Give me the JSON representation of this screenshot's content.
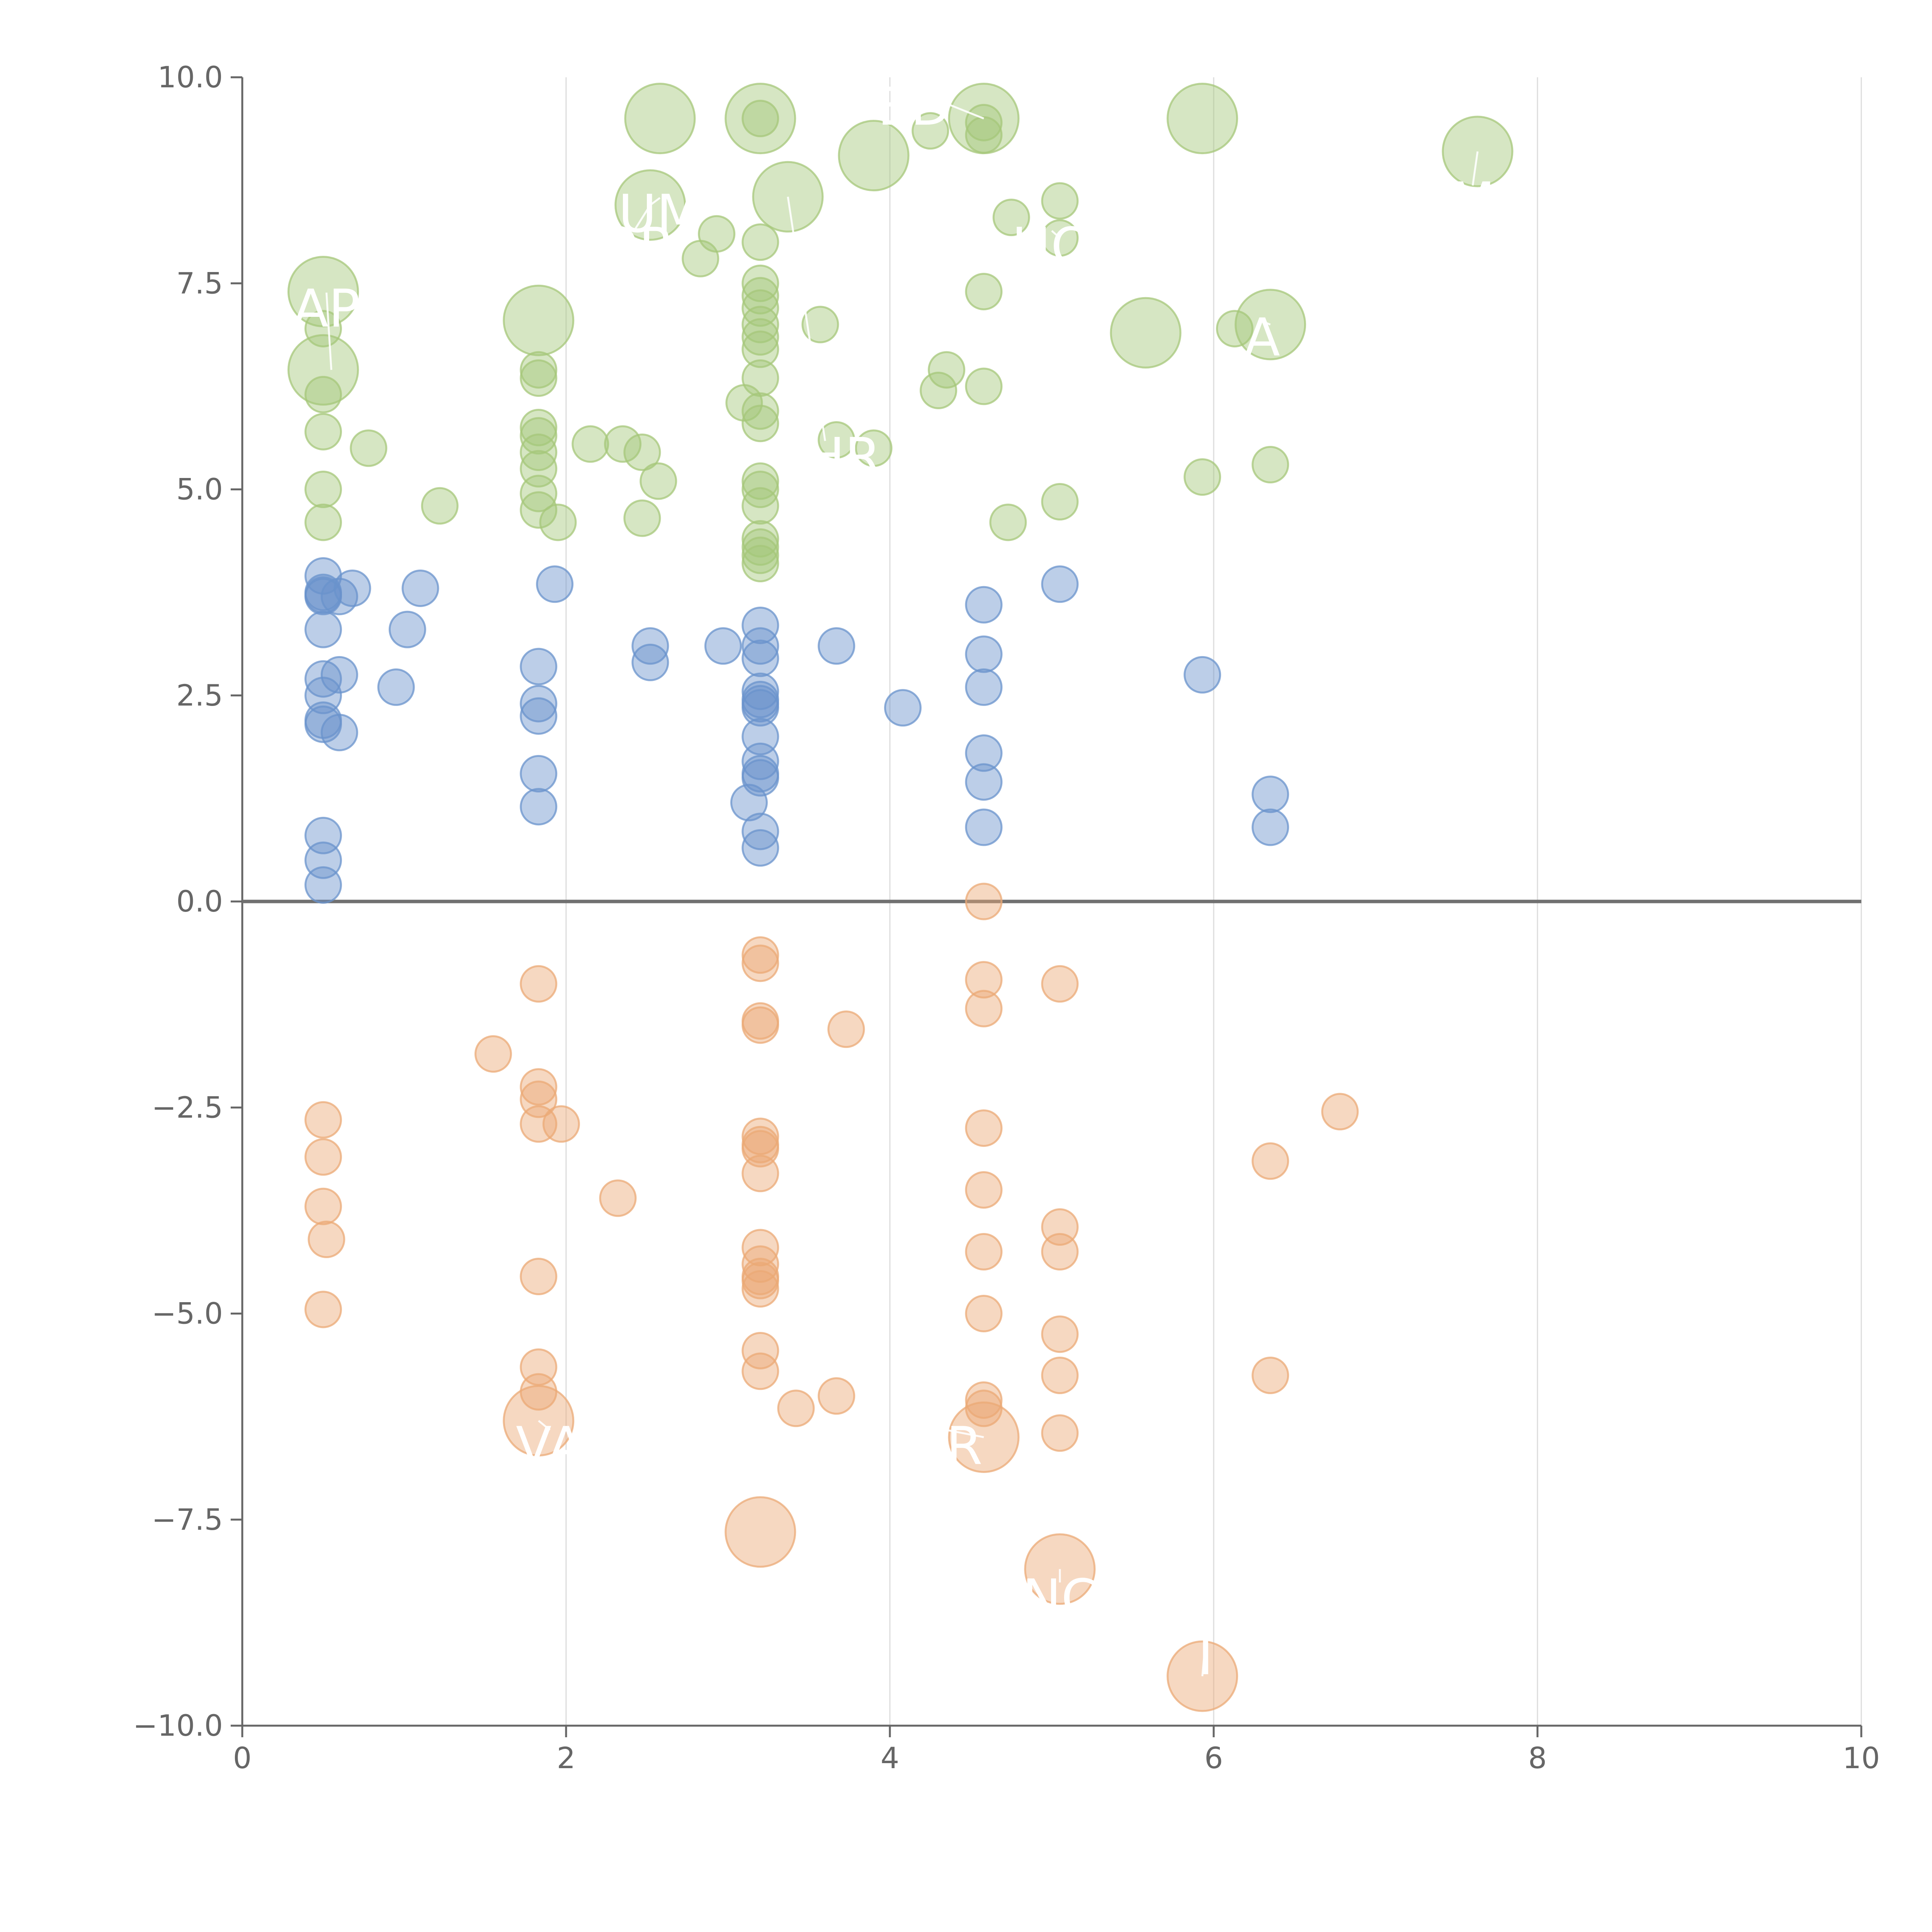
{
  "chart_data": {
    "type": "scatter",
    "xlim": [
      0,
      10
    ],
    "ylim": [
      -10,
      10
    ],
    "x_ticks": [
      "0",
      "2",
      "4",
      "6",
      "8",
      "10"
    ],
    "y_ticks": [
      "−10.0",
      "−7.5",
      "−5.0",
      "−2.5",
      "0.0",
      "2.5",
      "5.0",
      "7.5",
      "10.0"
    ],
    "grid": "vertical",
    "zero_line": true,
    "legend": "none",
    "colors": {
      "high": "#a5c77a",
      "mid": "#6a93cc",
      "low": "#eba976",
      "axis": "#666666",
      "grid": "#dcdcdc",
      "zero_line": "#707070"
    },
    "series": [
      {
        "color_key": "high",
        "points": [
          [
            0.5,
            7.4,
            3
          ],
          [
            0.5,
            6.95,
            1
          ],
          [
            0.5,
            6.45,
            3
          ],
          [
            0.5,
            6.15,
            1
          ],
          [
            0.5,
            5.7,
            1
          ],
          [
            0.5,
            5.0,
            1
          ],
          [
            0.5,
            4.6,
            1
          ],
          [
            0.78,
            5.5,
            1
          ],
          [
            1.22,
            4.8,
            1
          ],
          [
            1.83,
            7.05,
            3
          ],
          [
            1.83,
            6.45,
            1
          ],
          [
            1.83,
            6.35,
            1
          ],
          [
            1.83,
            5.75,
            1
          ],
          [
            1.83,
            5.65,
            1
          ],
          [
            1.83,
            5.45,
            1
          ],
          [
            1.83,
            5.25,
            1
          ],
          [
            1.83,
            4.95,
            1
          ],
          [
            1.83,
            4.75,
            1
          ],
          [
            1.95,
            4.6,
            1
          ],
          [
            2.15,
            5.55,
            1
          ],
          [
            2.35,
            5.55,
            1
          ],
          [
            2.47,
            5.45,
            1
          ],
          [
            2.57,
            5.1,
            1
          ],
          [
            2.47,
            4.65,
            1
          ],
          [
            2.52,
            8.45,
            3
          ],
          [
            2.58,
            9.5,
            3
          ],
          [
            2.83,
            7.8,
            1
          ],
          [
            2.93,
            8.1,
            1
          ],
          [
            3.2,
            9.5,
            3
          ],
          [
            3.2,
            9.5,
            1
          ],
          [
            3.2,
            8.0,
            1
          ],
          [
            3.2,
            7.5,
            1
          ],
          [
            3.2,
            7.35,
            1
          ],
          [
            3.2,
            7.2,
            1
          ],
          [
            3.2,
            7.0,
            1
          ],
          [
            3.2,
            6.85,
            1
          ],
          [
            3.2,
            6.7,
            1
          ],
          [
            3.2,
            6.35,
            1
          ],
          [
            3.1,
            6.05,
            1
          ],
          [
            3.2,
            5.95,
            1
          ],
          [
            3.2,
            5.8,
            1
          ],
          [
            3.2,
            5.1,
            1
          ],
          [
            3.2,
            5.0,
            1
          ],
          [
            3.2,
            4.8,
            1
          ],
          [
            3.2,
            4.4,
            1
          ],
          [
            3.2,
            4.3,
            1
          ],
          [
            3.2,
            4.2,
            1
          ],
          [
            3.2,
            4.1,
            1
          ],
          [
            3.37,
            8.55,
            3
          ],
          [
            3.57,
            7.0,
            1
          ],
          [
            3.67,
            5.6,
            1
          ],
          [
            3.9,
            5.5,
            1
          ],
          [
            3.9,
            9.05,
            3
          ],
          [
            4.25,
            9.35,
            1
          ],
          [
            4.3,
            6.2,
            1
          ],
          [
            4.35,
            6.45,
            1
          ],
          [
            4.58,
            9.5,
            3
          ],
          [
            4.58,
            9.45,
            1
          ],
          [
            4.58,
            9.3,
            1
          ],
          [
            4.58,
            7.4,
            1
          ],
          [
            4.58,
            6.25,
            1
          ],
          [
            4.75,
            8.3,
            1
          ],
          [
            4.73,
            4.6,
            1
          ],
          [
            5.05,
            8.5,
            1
          ],
          [
            5.05,
            8.05,
            1
          ],
          [
            5.05,
            4.85,
            1
          ],
          [
            5.58,
            6.9,
            3
          ],
          [
            5.93,
            9.5,
            3
          ],
          [
            5.93,
            5.15,
            1
          ],
          [
            6.13,
            6.95,
            1
          ],
          [
            6.35,
            7.0,
            3
          ],
          [
            6.35,
            5.3,
            1
          ],
          [
            7.63,
            9.1,
            3
          ]
        ]
      },
      {
        "color_key": "mid",
        "points": [
          [
            0.5,
            3.95,
            1
          ],
          [
            0.5,
            3.75,
            1
          ],
          [
            0.5,
            3.72,
            1
          ],
          [
            0.5,
            3.7,
            1
          ],
          [
            0.5,
            3.3,
            1
          ],
          [
            0.5,
            2.7,
            1
          ],
          [
            0.5,
            2.5,
            1
          ],
          [
            0.5,
            2.2,
            1
          ],
          [
            0.5,
            2.15,
            1
          ],
          [
            0.5,
            0.8,
            1
          ],
          [
            0.5,
            0.5,
            1
          ],
          [
            0.5,
            0.2,
            1
          ],
          [
            0.6,
            3.7,
            1
          ],
          [
            0.68,
            3.8,
            1
          ],
          [
            0.6,
            2.75,
            1
          ],
          [
            0.6,
            2.05,
            1
          ],
          [
            0.95,
            2.6,
            1
          ],
          [
            1.02,
            3.3,
            1
          ],
          [
            1.1,
            3.8,
            1
          ],
          [
            1.83,
            2.85,
            1
          ],
          [
            1.83,
            2.4,
            1
          ],
          [
            1.83,
            2.25,
            1
          ],
          [
            1.83,
            1.55,
            1
          ],
          [
            1.83,
            1.15,
            1
          ],
          [
            1.93,
            3.85,
            1
          ],
          [
            2.52,
            3.1,
            1
          ],
          [
            2.52,
            2.9,
            1
          ],
          [
            2.97,
            3.1,
            1
          ],
          [
            3.2,
            3.35,
            1
          ],
          [
            3.2,
            3.1,
            1
          ],
          [
            3.2,
            2.95,
            1
          ],
          [
            3.2,
            2.55,
            1
          ],
          [
            3.2,
            2.45,
            1
          ],
          [
            3.2,
            2.4,
            1
          ],
          [
            3.2,
            2.35,
            1
          ],
          [
            3.2,
            2.0,
            1
          ],
          [
            3.2,
            1.7,
            1
          ],
          [
            3.2,
            1.55,
            1
          ],
          [
            3.2,
            1.5,
            1
          ],
          [
            3.13,
            1.2,
            1
          ],
          [
            3.2,
            0.85,
            1
          ],
          [
            3.2,
            0.65,
            1
          ],
          [
            3.67,
            3.1,
            1
          ],
          [
            4.08,
            2.35,
            1
          ],
          [
            4.58,
            3.6,
            1
          ],
          [
            4.58,
            3.0,
            1
          ],
          [
            4.58,
            2.6,
            1
          ],
          [
            4.58,
            1.8,
            1
          ],
          [
            4.58,
            1.45,
            1
          ],
          [
            4.58,
            0.9,
            1
          ],
          [
            5.05,
            3.85,
            1
          ],
          [
            5.93,
            2.75,
            1
          ],
          [
            6.35,
            1.3,
            1
          ],
          [
            6.35,
            0.9,
            1
          ]
        ]
      },
      {
        "color_key": "low",
        "points": [
          [
            0.5,
            -2.65,
            1
          ],
          [
            0.5,
            -3.1,
            1
          ],
          [
            0.5,
            -3.7,
            1
          ],
          [
            0.52,
            -4.1,
            1
          ],
          [
            0.5,
            -4.95,
            1
          ],
          [
            1.55,
            -1.85,
            1
          ],
          [
            1.83,
            -1.0,
            1
          ],
          [
            1.83,
            -2.25,
            1
          ],
          [
            1.83,
            -2.4,
            1
          ],
          [
            1.83,
            -2.7,
            1
          ],
          [
            1.97,
            -2.7,
            1
          ],
          [
            1.83,
            -4.55,
            1
          ],
          [
            1.83,
            -5.65,
            1
          ],
          [
            1.83,
            -5.95,
            1
          ],
          [
            1.83,
            -6.3,
            3
          ],
          [
            2.32,
            -3.6,
            1
          ],
          [
            3.2,
            -0.65,
            1
          ],
          [
            3.2,
            -0.75,
            1
          ],
          [
            3.2,
            -1.45,
            1
          ],
          [
            3.2,
            -1.5,
            1
          ],
          [
            3.2,
            -2.85,
            1
          ],
          [
            3.2,
            -2.95,
            1
          ],
          [
            3.2,
            -3.0,
            1
          ],
          [
            3.2,
            -3.3,
            1
          ],
          [
            3.2,
            -4.2,
            1
          ],
          [
            3.2,
            -4.4,
            1
          ],
          [
            3.2,
            -4.55,
            1
          ],
          [
            3.2,
            -4.6,
            1
          ],
          [
            3.2,
            -4.7,
            1
          ],
          [
            3.2,
            -5.45,
            1
          ],
          [
            3.2,
            -5.7,
            1
          ],
          [
            3.2,
            -7.65,
            3
          ],
          [
            3.42,
            -6.15,
            1
          ],
          [
            3.67,
            -6.0,
            1
          ],
          [
            3.73,
            -1.55,
            1
          ],
          [
            4.58,
            0.0,
            1
          ],
          [
            4.58,
            -0.95,
            1
          ],
          [
            4.58,
            -1.3,
            1
          ],
          [
            4.58,
            -2.75,
            1
          ],
          [
            4.58,
            -3.5,
            1
          ],
          [
            4.58,
            -4.25,
            1
          ],
          [
            4.58,
            -5.0,
            1
          ],
          [
            4.58,
            -6.05,
            1
          ],
          [
            4.58,
            -6.15,
            1
          ],
          [
            4.58,
            -6.5,
            3
          ],
          [
            5.05,
            -1.0,
            1
          ],
          [
            5.05,
            -3.95,
            1
          ],
          [
            5.05,
            -4.25,
            1
          ],
          [
            5.05,
            -5.25,
            1
          ],
          [
            5.05,
            -5.75,
            1
          ],
          [
            5.05,
            -6.45,
            1
          ],
          [
            5.05,
            -8.1,
            3
          ],
          [
            5.93,
            -9.4,
            3
          ],
          [
            6.35,
            -3.15,
            1
          ],
          [
            6.35,
            -5.75,
            1
          ],
          [
            6.78,
            -2.55,
            1
          ]
        ]
      }
    ],
    "labels": [
      {
        "text": "AP",
        "x": 0.52,
        "y": 7.2,
        "lx": 0.55,
        "ly": 6.45
      },
      {
        "text": "UM",
        "x": 2.58,
        "y": 8.35,
        "lx": 2.52,
        "ly": 8.45
      },
      {
        "text": "OP",
        "x": 2.42,
        "y": 7.95,
        "lx": 2.52,
        "ly": 8.45
      },
      {
        "text": "ED",
        "x": 4.15,
        "y": 9.65,
        "lx": 4.58,
        "ly": 9.5
      },
      {
        "text": "HO",
        "x": 5.0,
        "y": 7.95,
        "lx": 5.05,
        "ly": 8.05
      },
      {
        "text": "A",
        "x": 6.3,
        "y": 6.85,
        "lx": 6.35,
        "ly": 7.0
      },
      {
        "text": "M",
        "x": 7.6,
        "y": 8.5,
        "lx": 7.63,
        "ly": 9.1
      },
      {
        "text": "CHR",
        "x": 3.6,
        "y": 5.4,
        "lx": 3.37,
        "ly": 8.55
      },
      {
        "text": "VA",
        "x": 1.9,
        "y": -6.6,
        "lx": 1.83,
        "ly": -6.3
      },
      {
        "text": "AR",
        "x": 4.35,
        "y": -6.6,
        "lx": 4.58,
        "ly": -6.5
      },
      {
        "text": "NC",
        "x": 5.05,
        "y": -8.45,
        "lx": 5.05,
        "ly": -8.1
      },
      {
        "text": "I",
        "x": 5.95,
        "y": -9.15,
        "lx": 5.93,
        "ly": -9.4
      }
    ]
  }
}
